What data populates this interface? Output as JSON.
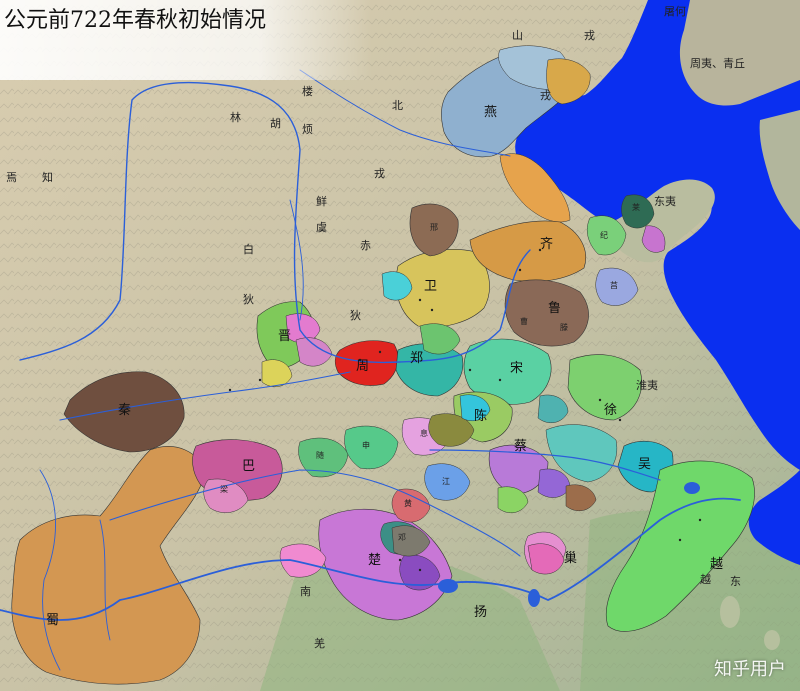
{
  "title": "公元前722年春秋初始情况",
  "watermark": "知乎用户",
  "regions": {
    "shanrong": [
      "山",
      "戎"
    ],
    "tuhe": "屠何",
    "zhouyi": "周夷、青丘",
    "linhu": [
      "林",
      "胡"
    ],
    "loufan": [
      "楼",
      "烦"
    ],
    "beirong": [
      "北",
      "戎"
    ],
    "xianyu": [
      "鲜",
      "虞"
    ],
    "baidi": [
      "白",
      "狄"
    ],
    "chidi": [
      "赤",
      "狄"
    ],
    "yizhi": [
      "焉",
      "知"
    ],
    "rong_n": "戎",
    "huaiyi": "淮夷",
    "dongyi": "东夷",
    "nanman": "南",
    "qiang": "羌",
    "baiyue": [
      "越",
      "东"
    ]
  },
  "states": {
    "yan": "燕",
    "qi": "齐",
    "lu": "鲁",
    "wei": "卫",
    "jin": "晋",
    "zhou": "周",
    "zheng": "郑",
    "song": "宋",
    "chen": "陈",
    "cai": "蔡",
    "xu": "徐",
    "qin": "秦",
    "chu": "楚",
    "shu": "蜀",
    "ba": "巴",
    "chao": "巢",
    "wu": "吴",
    "yue": "越",
    "yang": "扬",
    "liang": "梁",
    "ju": "莒",
    "ji": "纪",
    "cao": "曹",
    "teng": "滕",
    "xing": "邢",
    "deng": "邓",
    "sui": "随",
    "shen": "申",
    "xi": "息",
    "jiang": "江",
    "huang": "黄",
    "lai": "莱"
  },
  "colors": {
    "sea": "#0a2ff0",
    "land_base": "#cfc6ad",
    "mountains": "#a7ab93",
    "river": "#2b5fd9",
    "yan": "#8fb0cf",
    "qi": "#e89b3c",
    "lu": "#9b7761",
    "wei": "#d7c45c",
    "zhou": "#e0241f",
    "jin": "#8ed45a",
    "qin": "#7a5a4a",
    "chu": "#c877d6",
    "shu": "#d79853",
    "wu": "#26b6c6",
    "yue": "#6fd86a",
    "song": "#5ad1a3"
  }
}
